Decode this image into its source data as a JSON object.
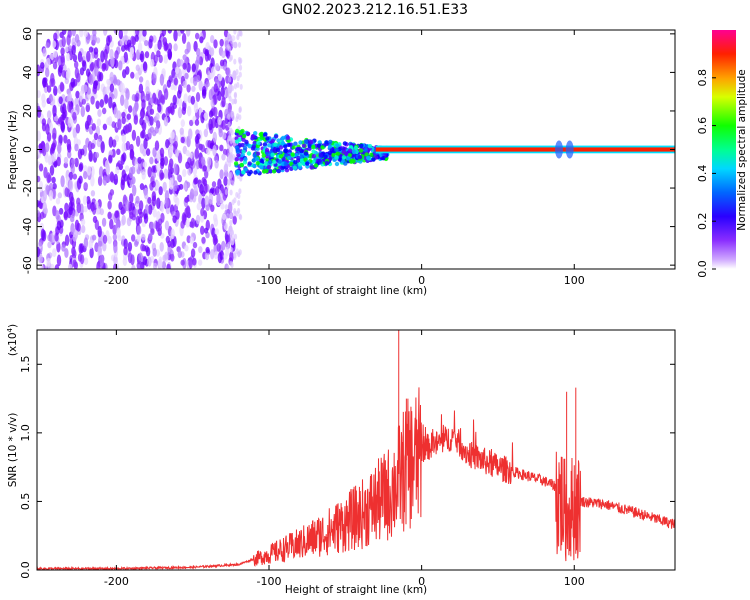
{
  "title": "GN02.2023.212.16.51.E33",
  "chart_data": [
    {
      "type": "heatmap",
      "xlabel": "Height of straight line (km)",
      "ylabel": "Frequency (Hz)",
      "xlim": [
        -252,
        166
      ],
      "ylim": [
        -62,
        62
      ],
      "xticks": [
        -200,
        -100,
        0,
        100
      ],
      "yticks": [
        60,
        40,
        20,
        0,
        -20,
        -40,
        -60
      ],
      "colorbar": {
        "label": "Normalized spectral amplitude",
        "range": [
          0,
          1
        ],
        "ticks": [
          0.0,
          0.2,
          0.4,
          0.6,
          0.8
        ],
        "colors": [
          "#ffffff",
          "#9a4dff",
          "#6a00ff",
          "#0000ff",
          "#00b0ff",
          "#00ffcc",
          "#00ff00",
          "#ffff00",
          "#ff8000",
          "#ff0000",
          "#ff0080"
        ]
      },
      "regions": [
        {
          "x_range": [
            -252,
            -122
          ],
          "f_range": [
            -62,
            62
          ],
          "amplitude": 0.1
        },
        {
          "x_range": [
            -122,
            -30
          ],
          "f_range": [
            -14,
            10
          ],
          "amplitude": 0.3
        },
        {
          "x_range": [
            -30,
            166
          ],
          "f_center": 0,
          "f_width": 2,
          "amplitude": 0.95
        }
      ]
    },
    {
      "type": "line",
      "xlabel": "Height of straight line (km)",
      "ylabel": "SNR (10 * v/v)",
      "multiplier": "(x10",
      "multiplier_exp": "4",
      "multiplier_close": ")",
      "xlim": [
        -252,
        166
      ],
      "ylim": [
        0,
        1.75
      ],
      "xticks": [
        -200,
        -100,
        0,
        100
      ],
      "yticks": [
        0.0,
        0.5,
        1.0,
        1.5
      ],
      "color": "#ee3030",
      "x": [
        -252,
        -200,
        -150,
        -120,
        -100,
        -80,
        -60,
        -40,
        -20,
        -15,
        -10,
        0,
        10,
        20,
        25,
        30,
        50,
        80,
        90,
        95,
        100,
        105,
        120,
        140,
        166
      ],
      "y": [
        0.01,
        0.01,
        0.02,
        0.04,
        0.12,
        0.2,
        0.3,
        0.42,
        0.6,
        0.7,
        0.8,
        0.88,
        0.92,
        0.97,
        0.92,
        0.85,
        0.75,
        0.65,
        0.6,
        0.45,
        0.52,
        0.5,
        0.48,
        0.42,
        0.33
      ],
      "peaks": [
        [
          -15,
          1.75
        ],
        [
          -10,
          1.25
        ],
        [
          95,
          1.3
        ],
        [
          101,
          1.33
        ]
      ]
    }
  ],
  "tick_labels": {
    "x": [
      "-200",
      "-100",
      "0",
      "100"
    ],
    "y_top": [
      "60",
      "40",
      "20",
      "0",
      "-20",
      "-40",
      "-60"
    ],
    "y_bottom": [
      "0.0",
      "0.5",
      "1.0",
      "1.5"
    ],
    "colorbar": [
      "0.0",
      "0.2",
      "0.4",
      "0.6",
      "0.8"
    ]
  }
}
